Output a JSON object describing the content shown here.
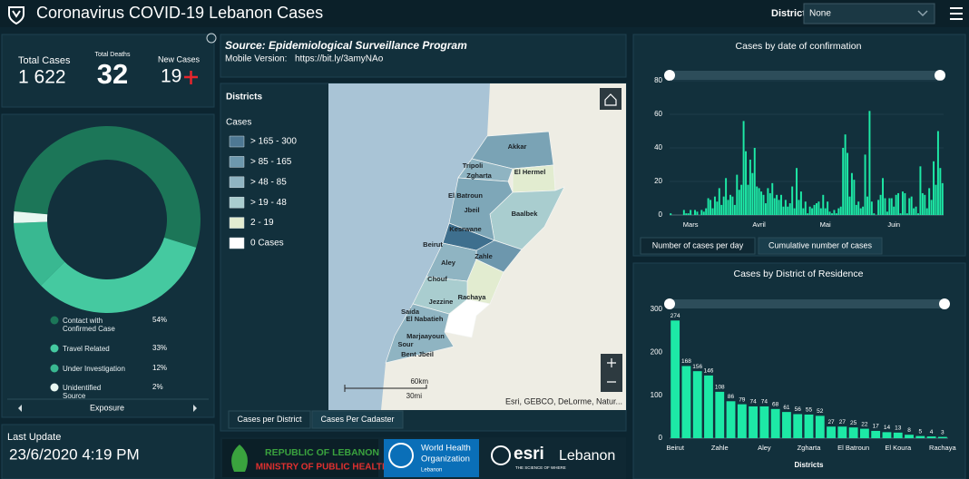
{
  "header": {
    "title": "Coronavirus COVID-19 Lebanon Cases",
    "district_label": "District",
    "district_value": "None"
  },
  "stats": {
    "total_cases_label": "Total Cases",
    "total_cases": "1 622",
    "total_deaths_label": "Total Deaths",
    "total_deaths": 32,
    "new_cases_label": "New Cases",
    "new_cases": 19
  },
  "last_update": {
    "label": "Last Update",
    "value": "23/6/2020 4:19 PM"
  },
  "source": {
    "title": "Source: Epidemiological Surveillance Program",
    "mobile_label": "Mobile Version:",
    "mobile_link": "https://bit.ly/3amyNAo"
  },
  "map": {
    "title": "Districts",
    "legend_title": "Cases",
    "legend": [
      {
        "label": "> 165 - 300",
        "color": "#4e7893"
      },
      {
        "label": "> 85 - 165",
        "color": "#6d98ad"
      },
      {
        "label": "> 48 - 85",
        "color": "#8fb4c2"
      },
      {
        "label": "> 19 - 48",
        "color": "#a9cdcf"
      },
      {
        "label": "2 - 19",
        "color": "#e2ecd0"
      },
      {
        "label": "0 Cases",
        "color": "#ffffff"
      }
    ],
    "districts": [
      "Akkar",
      "Tripoli",
      "Zgharta",
      "El Hermel",
      "El Batroun",
      "Jbeil",
      "Baalbek",
      "Kesrwane",
      "Beirut",
      "Aley",
      "Zahle",
      "Chouf",
      "Jezzine",
      "Rachaya",
      "Saida",
      "El Nabatieh",
      "Marjaayoun",
      "Sour",
      "Bent Jbeil"
    ],
    "scale_km": "60km",
    "scale_mi": "30mi",
    "attribution": "Esri, GEBCO, DeLorme, Natur...",
    "tabs": [
      "Cases per District",
      "Cases Per Cadaster"
    ]
  },
  "logos": {
    "moph_line1": "REPUBLIC OF LEBANON",
    "moph_line2": "MINISTRY OF PUBLIC HEALTH",
    "who_line1": "World Health",
    "who_line2": "Organization",
    "who_line3": "Lebanon",
    "esri": "esri",
    "esri_place": "Lebanon",
    "esri_tag": "THE SCIENCE OF WHERE"
  },
  "chart_data": [
    {
      "type": "pie",
      "donut": true,
      "footer": "Exposure",
      "categories": [
        "Contact with Confirmed Case",
        "Travel Related",
        "Under Investigation",
        "Unidentified Source"
      ],
      "values": [
        54,
        33,
        12,
        2
      ],
      "value_labels": [
        "54%",
        "33%",
        "12%",
        "2%"
      ],
      "colors": [
        "#1c7658",
        "#45c9a0",
        "#39b891",
        "#e8f7f1"
      ]
    },
    {
      "type": "bar",
      "title": "Cases by date of confirmation",
      "color": "#1de9a6",
      "grid": true,
      "ylim": [
        0,
        80
      ],
      "yticks": [
        0,
        20,
        40,
        60,
        80
      ],
      "tabs": [
        "Number of cases per day",
        "Cumulative number of cases"
      ],
      "categories": [
        null,
        null,
        null,
        null,
        null,
        null,
        null,
        null,
        null,
        "Mars",
        null,
        null,
        null,
        null,
        null,
        null,
        null,
        null,
        null,
        null,
        null,
        null,
        null,
        null,
        null,
        null,
        null,
        null,
        null,
        null,
        null,
        null,
        null,
        null,
        null,
        null,
        null,
        null,
        null,
        null,
        "Avril",
        null,
        null,
        null,
        null,
        null,
        null,
        null,
        null,
        null,
        null,
        null,
        null,
        null,
        null,
        null,
        null,
        null,
        null,
        null,
        null,
        null,
        null,
        null,
        null,
        null,
        null,
        null,
        null,
        null,
        "Mai",
        null,
        null,
        null,
        null,
        null,
        null,
        null,
        null,
        null,
        null,
        null,
        null,
        null,
        null,
        null,
        null,
        null,
        null,
        null,
        null,
        null,
        null,
        null,
        null,
        null,
        null,
        null,
        null,
        null,
        null,
        "Juin",
        null,
        null,
        null,
        null,
        null,
        null,
        null,
        null,
        null,
        null,
        null,
        null,
        null,
        null,
        null,
        null,
        null,
        null,
        null,
        null,
        null,
        null
      ],
      "values": [
        1,
        0,
        0,
        0,
        0,
        0,
        3,
        1,
        1,
        3,
        0,
        3,
        2,
        0,
        3,
        2,
        4,
        10,
        9,
        4,
        11,
        8,
        16,
        6,
        11,
        22,
        9,
        12,
        11,
        6,
        24,
        15,
        18,
        56,
        38,
        18,
        33,
        25,
        40,
        17,
        16,
        14,
        12,
        7,
        16,
        13,
        19,
        10,
        12,
        9,
        12,
        5,
        9,
        5,
        7,
        17,
        4,
        28,
        9,
        14,
        4,
        8,
        1,
        5,
        4,
        6,
        7,
        8,
        4,
        12,
        4,
        8,
        2,
        1,
        3,
        1,
        4,
        5,
        40,
        48,
        37,
        11,
        25,
        21,
        6,
        8,
        4,
        5,
        36,
        11,
        62,
        8,
        1,
        0,
        9,
        12,
        22,
        10,
        2,
        10,
        10,
        5,
        12,
        13,
        1,
        14,
        13,
        1,
        10,
        11,
        4,
        5,
        1,
        29,
        13,
        12,
        4,
        16,
        9,
        32,
        18,
        50,
        28,
        19
      ]
    },
    {
      "type": "bar",
      "title": "Cases by District of Residence",
      "color": "#1de9a6",
      "x_label": "Districts",
      "ylim": [
        0,
        300
      ],
      "yticks": [
        0,
        100,
        200,
        300
      ],
      "categories": [
        "Beirut",
        null,
        null,
        null,
        "Zahle",
        null,
        null,
        null,
        "Aley",
        null,
        null,
        null,
        "Zgharta",
        null,
        null,
        null,
        "El Batroun",
        null,
        null,
        null,
        "El Koura",
        null,
        null,
        null,
        "Rachaya"
      ],
      "values": [
        274,
        168,
        156,
        146,
        108,
        86,
        79,
        74,
        74,
        68,
        61,
        56,
        55,
        52,
        27,
        27,
        25,
        22,
        17,
        14,
        13,
        8,
        5,
        4,
        3
      ]
    }
  ]
}
